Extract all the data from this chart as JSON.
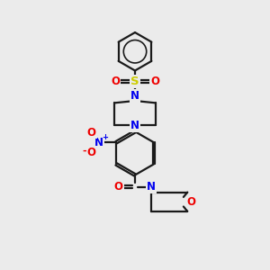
{
  "bg_color": "#ebebeb",
  "bond_color": "#1a1a1a",
  "atom_colors": {
    "N": "#0000ee",
    "O": "#ee0000",
    "S": "#cccc00",
    "C": "#1a1a1a"
  },
  "figsize": [
    3.0,
    3.0
  ],
  "dpi": 100,
  "lw": 1.6,
  "fs": 8.5
}
